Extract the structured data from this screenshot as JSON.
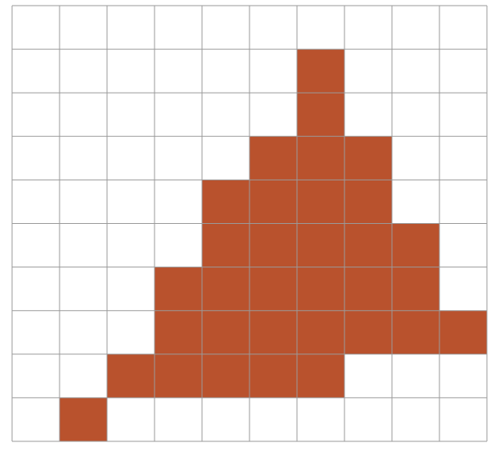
{
  "grid": {
    "rows": 10,
    "cols": 10,
    "fill_color": "#b9522d",
    "line_color": "#9a9a9a",
    "background_color": "#ffffff",
    "filled_cells": [
      [
        1,
        6
      ],
      [
        2,
        6
      ],
      [
        3,
        5
      ],
      [
        3,
        6
      ],
      [
        3,
        7
      ],
      [
        4,
        4
      ],
      [
        4,
        5
      ],
      [
        4,
        6
      ],
      [
        4,
        7
      ],
      [
        5,
        4
      ],
      [
        5,
        5
      ],
      [
        5,
        6
      ],
      [
        5,
        7
      ],
      [
        5,
        8
      ],
      [
        6,
        3
      ],
      [
        6,
        4
      ],
      [
        6,
        5
      ],
      [
        6,
        6
      ],
      [
        6,
        7
      ],
      [
        6,
        8
      ],
      [
        7,
        3
      ],
      [
        7,
        4
      ],
      [
        7,
        5
      ],
      [
        7,
        6
      ],
      [
        7,
        7
      ],
      [
        7,
        8
      ],
      [
        7,
        9
      ],
      [
        8,
        2
      ],
      [
        8,
        3
      ],
      [
        8,
        4
      ],
      [
        8,
        5
      ],
      [
        8,
        6
      ],
      [
        9,
        1
      ]
    ]
  }
}
